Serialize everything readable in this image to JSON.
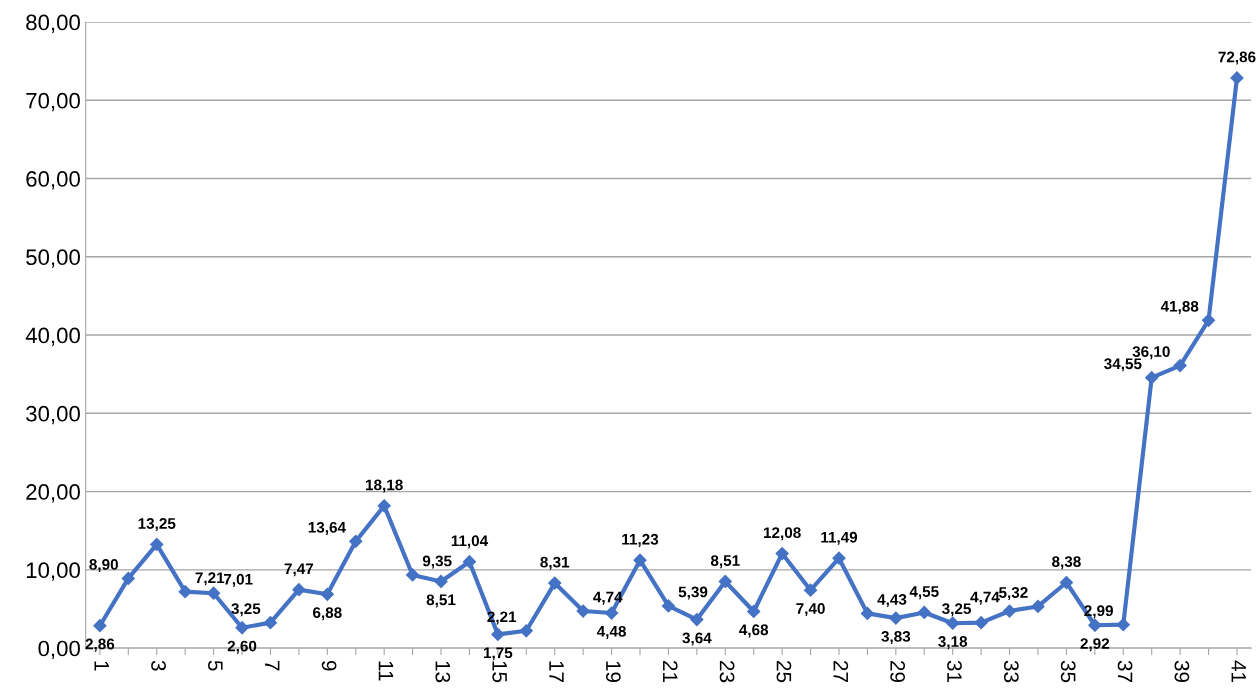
{
  "chart_data": {
    "type": "line",
    "categories": [
      "1",
      null,
      "3",
      null,
      "5",
      null,
      "7",
      null,
      "9",
      null,
      "11",
      null,
      "13",
      null,
      "15",
      null,
      "17",
      null,
      "19",
      null,
      "21",
      null,
      "23",
      null,
      "25",
      null,
      "27",
      null,
      "29",
      null,
      "31",
      null,
      "33",
      null,
      "35",
      null,
      "37",
      null,
      "39",
      null,
      "41"
    ],
    "series": [
      {
        "color": "#4472c4",
        "values": [
          2.86,
          8.9,
          13.25,
          7.21,
          7.01,
          2.6,
          3.25,
          7.47,
          6.88,
          13.64,
          18.18,
          9.35,
          8.51,
          11.04,
          1.75,
          2.21,
          8.31,
          4.74,
          4.48,
          11.23,
          5.39,
          3.64,
          8.51,
          4.68,
          12.08,
          7.4,
          11.49,
          4.43,
          3.83,
          4.55,
          3.18,
          3.25,
          4.74,
          5.32,
          8.38,
          2.92,
          2.99,
          34.55,
          36.1,
          41.88,
          72.86
        ],
        "value_labels": [
          "2,86",
          "8,90",
          "13,25",
          "7,21",
          "7,01",
          "2,60",
          "3,25",
          "7,47",
          "6,88",
          "13,64",
          "18,18",
          "9,35",
          "8,51",
          "11,04",
          "1,75",
          "2,21",
          "8,31",
          "4,74",
          "4,48",
          "11,23",
          "5,39",
          "3,64",
          "8,51",
          "4,68",
          "12,08",
          "7,40",
          "11,49",
          "4,43",
          "3,83",
          "4,55",
          "3,18",
          "3,25",
          "4,74",
          "5,32",
          "8,38",
          "2,92",
          "2,99",
          "34,55",
          "36,10",
          "41,88",
          "72,86"
        ]
      }
    ],
    "ylim": [
      0,
      80
    ],
    "yticks": [
      {
        "value": 0,
        "label": "0,00"
      },
      {
        "value": 10,
        "label": "10,00"
      },
      {
        "value": 20,
        "label": "20,00"
      },
      {
        "value": 30,
        "label": "30,00"
      },
      {
        "value": 40,
        "label": "40,00"
      },
      {
        "value": 50,
        "label": "50,00"
      },
      {
        "value": 60,
        "label": "60,00"
      },
      {
        "value": 70,
        "label": "70,00"
      },
      {
        "value": 80,
        "label": "80,00"
      }
    ],
    "grid": "y",
    "marker": "diamond",
    "line_style": "solid",
    "legend": false
  }
}
